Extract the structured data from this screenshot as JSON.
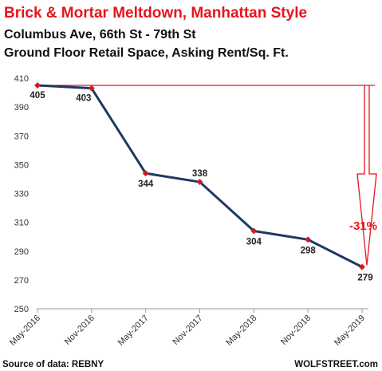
{
  "chart_data": {
    "type": "line",
    "title": "Brick & Mortar Meltdown, Manhattan Style",
    "subtitle_1": "Columbus Ave, 66th St - 79th St",
    "subtitle_2": "Ground Floor Retail Space, Asking Rent/Sq. Ft.",
    "categories": [
      "May-2016",
      "Nov-2016",
      "May-2017",
      "Nov-2017",
      "May-2018",
      "Nov-2018",
      "May-2019"
    ],
    "series": [
      {
        "values": [
          405,
          403,
          344,
          338,
          304,
          298,
          279
        ],
        "labels": [
          "405",
          "403",
          "344",
          "338",
          "304",
          "298",
          "279"
        ]
      }
    ],
    "ylim": [
      250,
      410
    ],
    "yticks": [
      "250",
      "270",
      "290",
      "310",
      "330",
      "350",
      "370",
      "390",
      "410"
    ],
    "annotation": "-31%",
    "source": "Source of data: REBNY",
    "credit": "WOLFSTREET.com",
    "colors": {
      "line": "#1f3864",
      "marker": "#d7191c",
      "accent": "#e8141c"
    },
    "grid": false
  }
}
